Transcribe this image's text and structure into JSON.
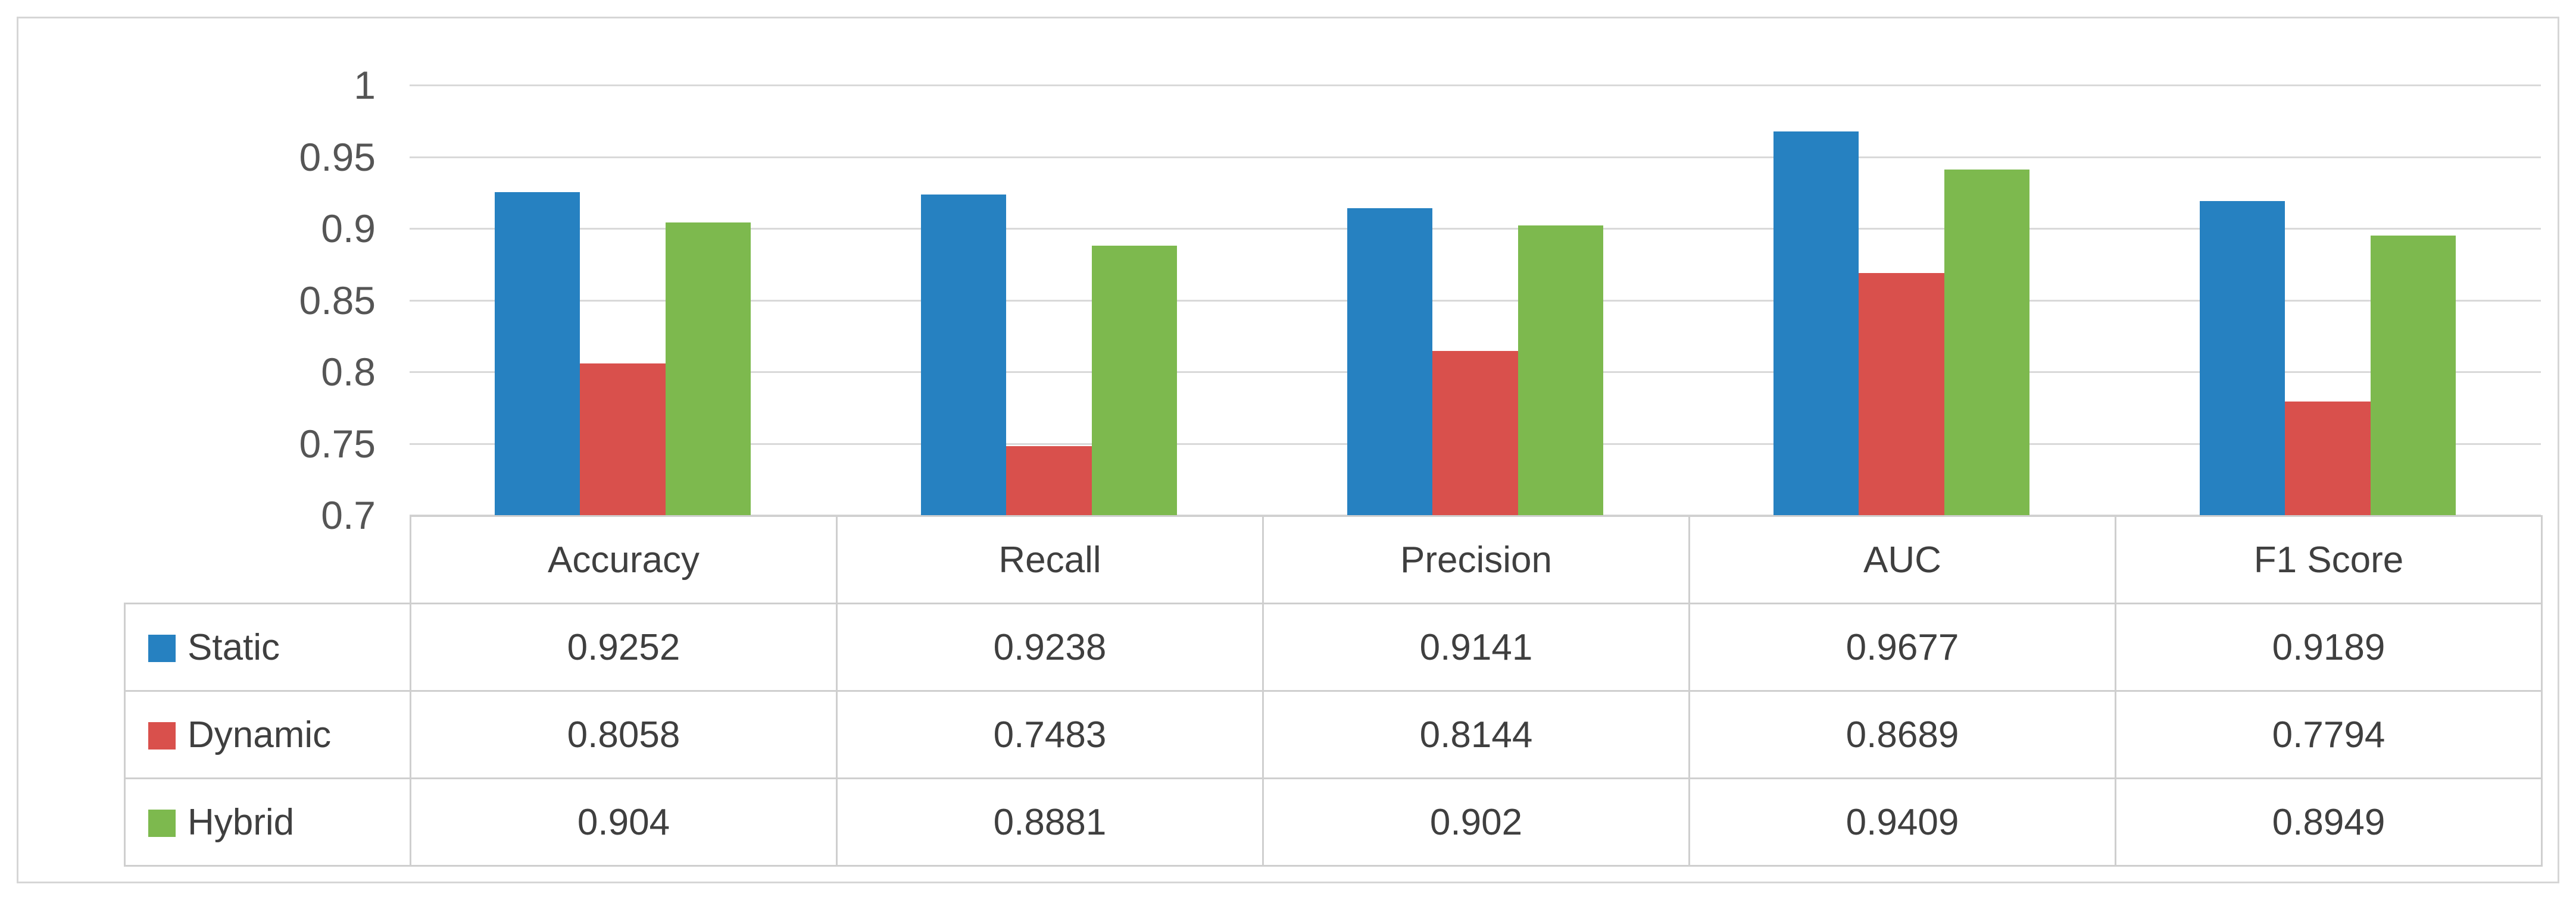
{
  "chart_data": {
    "type": "bar",
    "title": "",
    "xlabel": "",
    "ylabel": "",
    "categories": [
      "Accuracy",
      "Recall",
      "Precision",
      "AUC",
      "F1 Score"
    ],
    "series": [
      {
        "name": "Static",
        "color": "#2681c1",
        "values": [
          0.9252,
          0.9238,
          0.9141,
          0.9677,
          0.9189
        ],
        "display": [
          "0.9252",
          "0.9238",
          "0.9141",
          "0.9677",
          "0.9189"
        ]
      },
      {
        "name": "Dynamic",
        "color": "#d9504c",
        "values": [
          0.8058,
          0.7483,
          0.8144,
          0.8689,
          0.7794
        ],
        "display": [
          "0.8058",
          "0.7483",
          "0.8144",
          "0.8689",
          "0.7794"
        ]
      },
      {
        "name": "Hybrid",
        "color": "#7db94e",
        "values": [
          0.904,
          0.8881,
          0.902,
          0.9409,
          0.8949
        ],
        "display": [
          "0.904",
          "0.8881",
          "0.902",
          "0.9409",
          "0.8949"
        ]
      }
    ],
    "ylim": [
      0.7,
      1.0
    ],
    "ytick_labels": [
      "1",
      "0.95",
      "0.9",
      "0.85",
      "0.8",
      "0.75",
      "0.7"
    ],
    "grid": true,
    "legend_position": "table-rows-left",
    "data_table_shown": true
  },
  "colors": {
    "gridline": "#d9d9d9",
    "table_border": "#cfcfcf",
    "frame_border": "#d6d6d6",
    "tick_text": "#555555",
    "cell_text": "#3f3f3f",
    "background": "#ffffff"
  }
}
